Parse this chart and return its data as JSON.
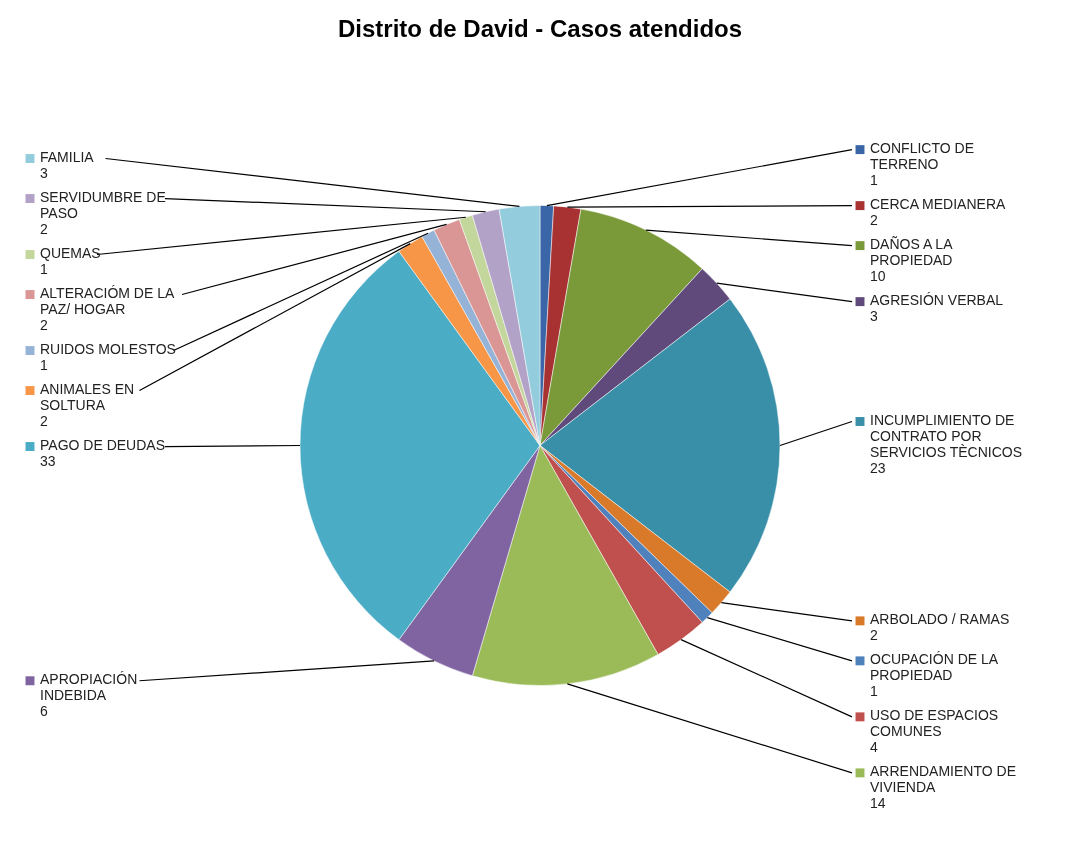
{
  "chart_data": {
    "type": "pie",
    "title": "Distrito de David - Casos atendidos",
    "categories": [
      "CONFLICTO DE TERRENO",
      "CERCA MEDIANERA",
      "DAÑOS A LA PROPIEDAD",
      "AGRESIÓN VERBAL",
      "INCUMPLIMIENTO DE CONTRATO POR SERVICIOS TÈCNICOS",
      "ARBOLADO / RAMAS",
      "OCUPACIÓN DE LA PROPIEDAD",
      "USO DE ESPACIOS COMUNES",
      "ARRENDAMIENTO DE VIVIENDA",
      "APROPIACIÓN INDEBIDA",
      "PAGO DE DEUDAS",
      "ANIMALES EN SOLTURA",
      "RUIDOS MOLESTOS",
      "ALTERACIÓM DE LA PAZ/ HOGAR",
      "QUEMAS",
      "SERVIDUMBRE DE PASO",
      "FAMILIA"
    ],
    "values": [
      1,
      2,
      10,
      3,
      23,
      2,
      1,
      4,
      14,
      6,
      33,
      2,
      1,
      2,
      1,
      2,
      3
    ],
    "colors": [
      "#3a66a8",
      "#a83232",
      "#7a9a3a",
      "#604a7b",
      "#3a8fa8",
      "#d97a2a",
      "#4f81bd",
      "#c0504d",
      "#9bbb59",
      "#8064a2",
      "#4bacc6",
      "#f79646",
      "#95b3d7",
      "#d99694",
      "#c3d69b",
      "#b3a2c7",
      "#93cddd"
    ],
    "data_labels": true,
    "legend": "right"
  }
}
